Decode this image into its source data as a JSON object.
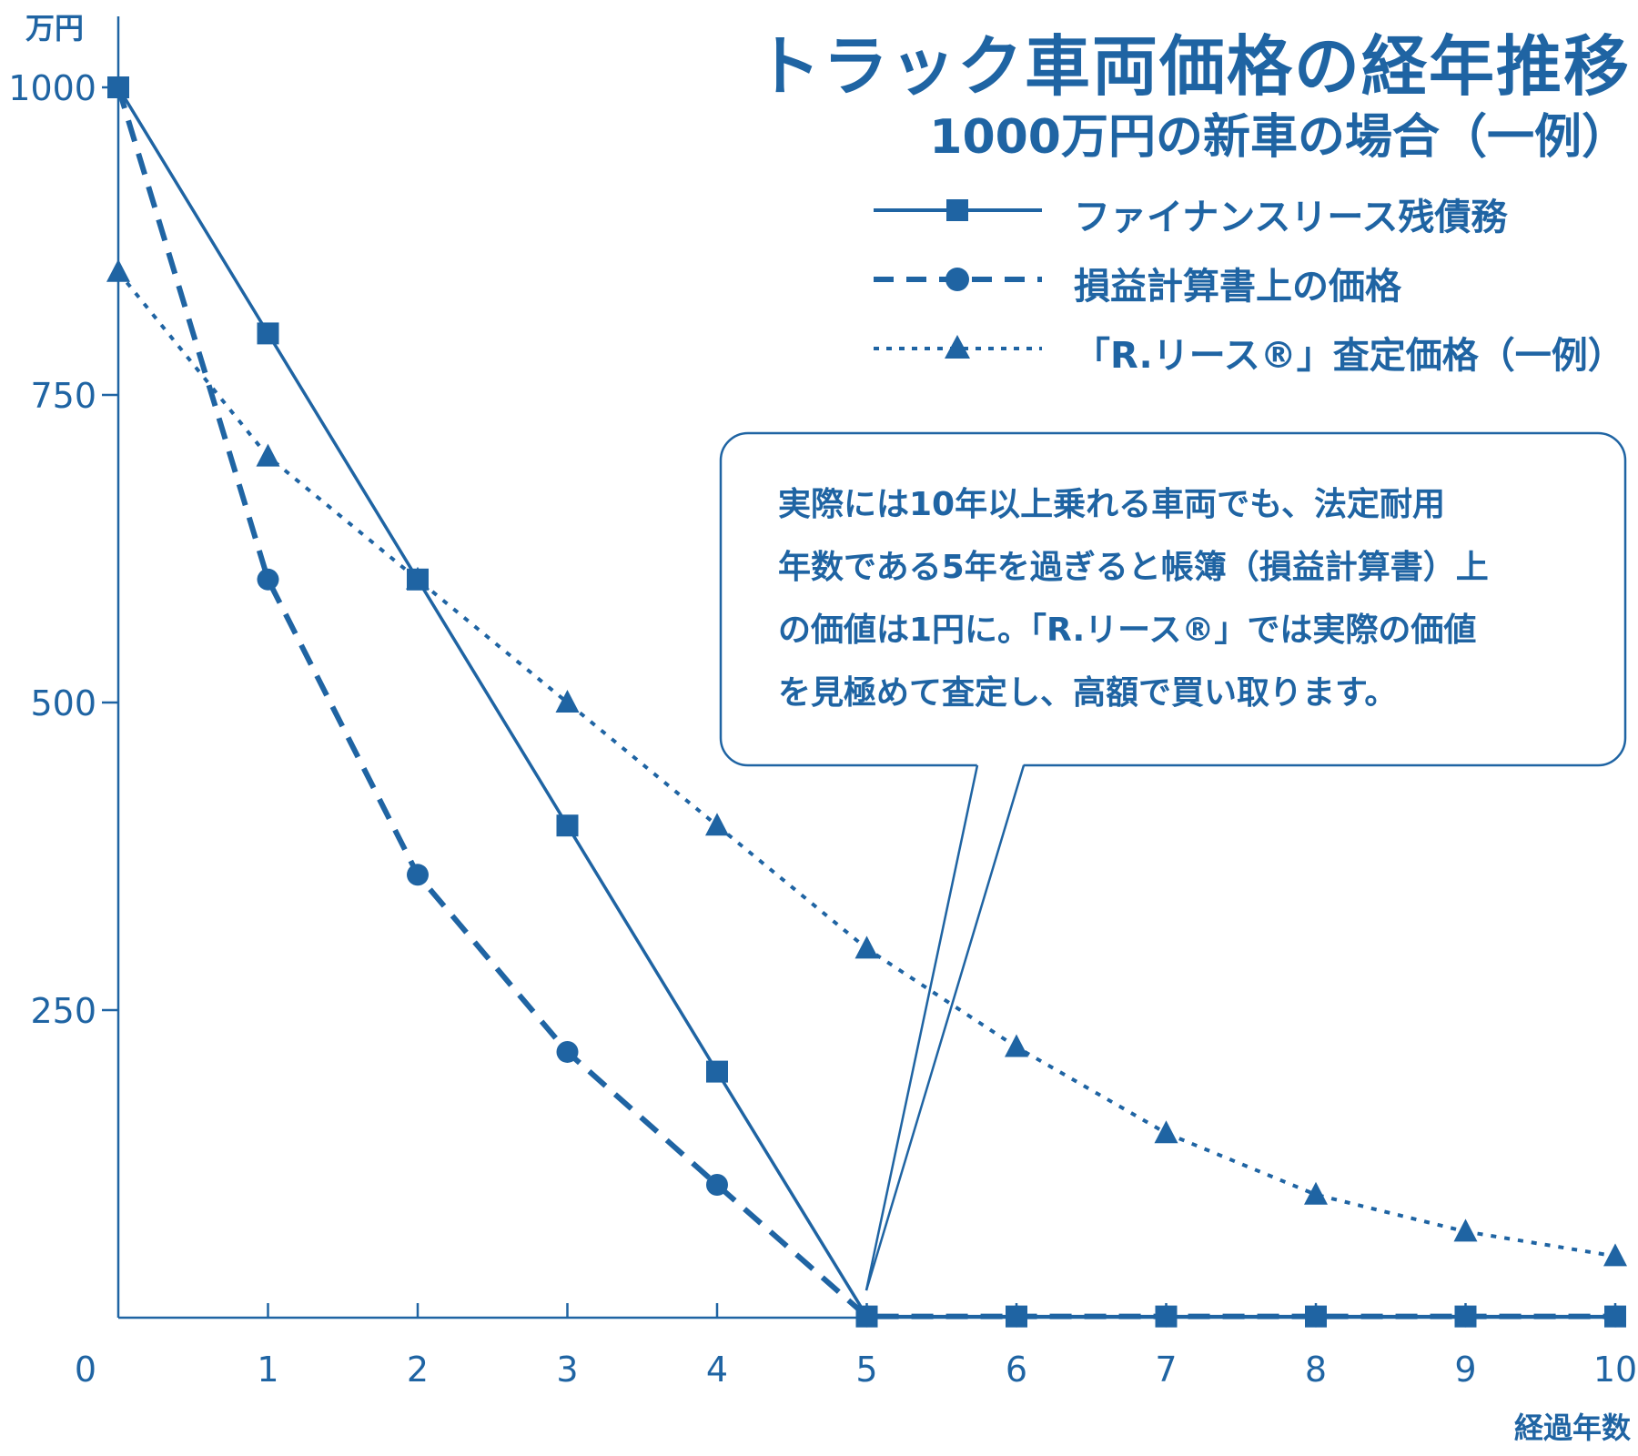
{
  "chart_data": {
    "type": "line",
    "title": "トラック車両価格の経年推移",
    "subtitle": "1000万円の新車の場合（一例）",
    "ylabel": "万円",
    "xlabel": "経過年数",
    "x": [
      0,
      1,
      2,
      3,
      4,
      5,
      6,
      7,
      8,
      9,
      10
    ],
    "ylim": [
      0,
      1000
    ],
    "yticks": [
      250,
      500,
      750,
      1000
    ],
    "xticks": [
      "0",
      "1",
      "2",
      "3",
      "4",
      "5",
      "6",
      "7",
      "8",
      "9",
      "10"
    ],
    "grid": false,
    "legend_position": "top-right",
    "series": [
      {
        "name": "ファイナンスリース残債務",
        "style": "solid",
        "marker": "square",
        "values": [
          1000,
          800,
          600,
          400,
          200,
          1,
          1,
          1,
          1,
          1,
          1
        ]
      },
      {
        "name": "損益計算書上の価格",
        "style": "dashed",
        "marker": "circle",
        "values": [
          1000,
          600,
          360,
          216,
          108,
          1,
          1,
          1,
          1,
          1,
          1
        ]
      },
      {
        "name": "「R.リース®」査定価格（一例）",
        "style": "dotted",
        "marker": "triangle",
        "values": [
          850,
          700,
          600,
          500,
          400,
          300,
          220,
          150,
          100,
          70,
          50
        ]
      }
    ],
    "annotations": [
      "実際には10年以上乗れる車両でも、法定耐用",
      "年数である5年を過ぎると帳簿（損益計算書）上",
      "の価値は1円に。「R.リース®」では実際の価値",
      "を見極めて査定し、高額で買い取ります。"
    ]
  },
  "colors": {
    "primary": "#1f64a3",
    "background": "#ffffff"
  }
}
